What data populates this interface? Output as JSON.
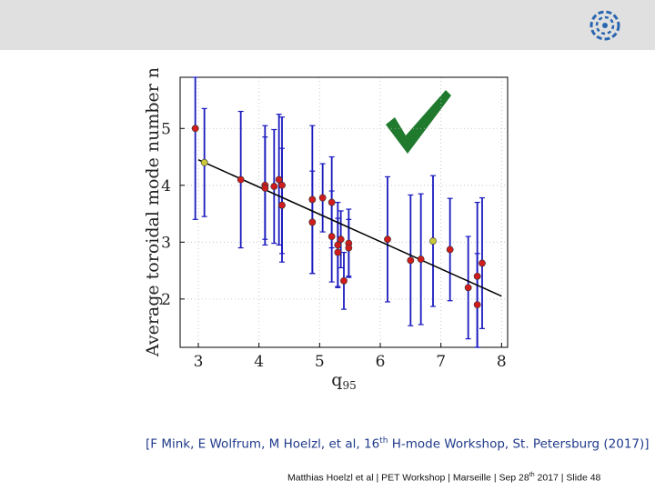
{
  "colors": {
    "header_bar": "#e0e0e0",
    "error_bar": "#1a1abf",
    "point_red": "#d01c1c",
    "point_yellow": "#c8c83a",
    "fit_line": "#000000",
    "check_mark": "#1f7a2e",
    "citation": "#1f3a8a",
    "logo": "#2a66b0"
  },
  "icons": {
    "logo": "fusion-logo-icon",
    "check": "check-mark-icon"
  },
  "chart_data": {
    "type": "scatter",
    "title": "",
    "xlabel": "q",
    "xlabel_subscript": "95",
    "ylabel": "Average toroidal mode number n",
    "xlim": [
      2.7,
      8.1
    ],
    "ylim": [
      1.15,
      5.9
    ],
    "xticks": [
      3,
      4,
      5,
      6,
      7,
      8
    ],
    "yticks": [
      2,
      3,
      4,
      5
    ],
    "grid": true,
    "points": [
      {
        "x": 2.95,
        "y": 5.0,
        "err": 1.6,
        "color": "red"
      },
      {
        "x": 3.1,
        "y": 4.4,
        "err": 0.95,
        "color": "yellow"
      },
      {
        "x": 3.7,
        "y": 4.1,
        "err": 1.2,
        "color": "red"
      },
      {
        "x": 4.1,
        "y": 4.0,
        "err": 1.05,
        "color": "red"
      },
      {
        "x": 4.1,
        "y": 3.95,
        "err": 0.9,
        "color": "red"
      },
      {
        "x": 4.25,
        "y": 3.98,
        "err": 1.0,
        "color": "red"
      },
      {
        "x": 4.33,
        "y": 4.1,
        "err": 1.15,
        "color": "red"
      },
      {
        "x": 4.38,
        "y": 4.0,
        "err": 1.2,
        "color": "red"
      },
      {
        "x": 4.38,
        "y": 3.65,
        "err": 1.0,
        "color": "red"
      },
      {
        "x": 4.88,
        "y": 3.75,
        "err": 1.3,
        "color": "red"
      },
      {
        "x": 4.88,
        "y": 3.35,
        "err": 0.9,
        "color": "red"
      },
      {
        "x": 5.05,
        "y": 3.78,
        "err": 0.6,
        "color": "red"
      },
      {
        "x": 5.2,
        "y": 3.7,
        "err": 0.8,
        "color": "red"
      },
      {
        "x": 5.2,
        "y": 3.1,
        "err": 0.8,
        "color": "red"
      },
      {
        "x": 5.3,
        "y": 2.95,
        "err": 0.75,
        "color": "red"
      },
      {
        "x": 5.3,
        "y": 2.82,
        "err": 0.6,
        "color": "red"
      },
      {
        "x": 5.35,
        "y": 3.05,
        "err": 0.5,
        "color": "red"
      },
      {
        "x": 5.4,
        "y": 2.32,
        "err": 0.5,
        "color": "red"
      },
      {
        "x": 5.48,
        "y": 2.98,
        "err": 0.6,
        "color": "red"
      },
      {
        "x": 5.48,
        "y": 2.9,
        "err": 0.5,
        "color": "red"
      },
      {
        "x": 6.12,
        "y": 3.05,
        "err": 1.1,
        "color": "red"
      },
      {
        "x": 6.5,
        "y": 2.68,
        "err": 1.15,
        "color": "red"
      },
      {
        "x": 6.67,
        "y": 2.7,
        "err": 1.15,
        "color": "red"
      },
      {
        "x": 6.87,
        "y": 3.02,
        "err": 1.15,
        "color": "yellow"
      },
      {
        "x": 7.15,
        "y": 2.87,
        "err": 0.9,
        "color": "red"
      },
      {
        "x": 7.45,
        "y": 2.2,
        "err": 0.9,
        "color": "red"
      },
      {
        "x": 7.6,
        "y": 2.4,
        "err": 1.3,
        "color": "red"
      },
      {
        "x": 7.6,
        "y": 1.9,
        "err": 0.9,
        "color": "red"
      },
      {
        "x": 7.68,
        "y": 2.63,
        "err": 1.15,
        "color": "red"
      }
    ],
    "fit_line": {
      "x": [
        3.0,
        8.0
      ],
      "y": [
        4.45,
        2.05
      ]
    }
  },
  "citation": {
    "prefix": "[F Mink, E Wolfrum, M Hoelzl, et al, 16",
    "sup": "th",
    "suffix": " H-mode Workshop, St. Petersburg (2017)]"
  },
  "footer": {
    "prefix": "Matthias Hoelzl et al | PET Workshop | Marseille | Sep 28",
    "sup": "th",
    "suffix": " 2017 |  Slide 48"
  }
}
